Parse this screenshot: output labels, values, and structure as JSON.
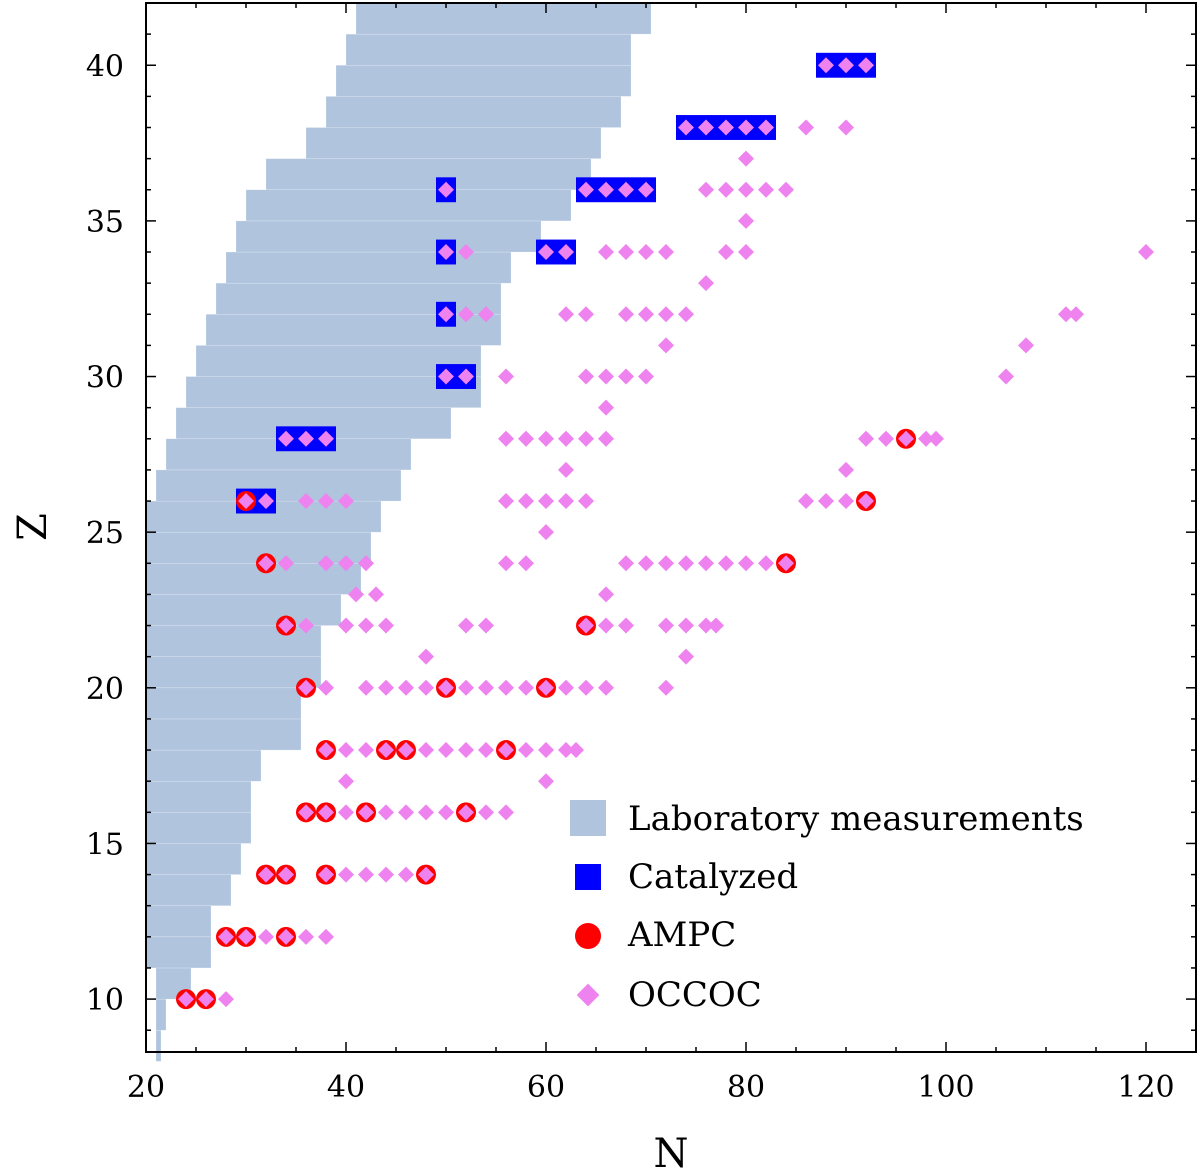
{
  "chart_data": {
    "type": "scatter",
    "title": "",
    "xlabel": "N",
    "ylabel": "Z",
    "xlim": [
      20,
      125
    ],
    "ylim": [
      8.3,
      42
    ],
    "xticks": [
      20,
      40,
      60,
      80,
      100,
      120
    ],
    "yticks": [
      10,
      15,
      20,
      25,
      30,
      35,
      40
    ],
    "grid": false,
    "legend_position": "lower-right",
    "colors": {
      "lab": "#b0c4de",
      "catalyzed": "#0000ff",
      "ampc": "#ff0000",
      "occoc": "#ee82ee"
    },
    "series": [
      {
        "name": "Laboratory measurements",
        "kind": "band",
        "z": [
          8.5,
          9.5,
          10.5,
          11.5,
          12.5,
          13.5,
          14.5,
          15.5,
          16.5,
          17.5,
          18.5,
          19.5,
          20.5,
          21.5,
          22.5,
          23.5,
          24.5,
          25.5,
          26.5,
          27.5,
          28.5,
          29.5,
          30.5,
          31.5,
          32.5,
          33.5,
          34.5,
          35.5,
          36.5,
          37.5,
          38.5,
          39.5,
          40.5,
          41.5
        ],
        "n_min": [
          21,
          21,
          21,
          20,
          20,
          20,
          20,
          20,
          20,
          20,
          20,
          20,
          20,
          20,
          20,
          20,
          20,
          20,
          21,
          22,
          23,
          24,
          25,
          26,
          27,
          28,
          29,
          30,
          32,
          36,
          38,
          39,
          40,
          41
        ],
        "n_max": [
          21.5,
          22,
          24.5,
          26.5,
          26.5,
          28.5,
          29.5,
          30.5,
          30.5,
          31.5,
          35.5,
          35.5,
          37.5,
          37.5,
          39.5,
          41.5,
          42.5,
          43.5,
          45.5,
          46.5,
          50.5,
          53.5,
          53.5,
          55.5,
          55.5,
          56.5,
          59.5,
          62.5,
          64.5,
          65.5,
          67.5,
          68.5,
          68.5,
          70.5
        ]
      },
      {
        "name": "Catalyzed",
        "kind": "square",
        "points": [
          [
            88,
            40
          ],
          [
            90,
            40
          ],
          [
            92,
            40
          ],
          [
            74,
            38
          ],
          [
            76,
            38
          ],
          [
            78,
            38
          ],
          [
            80,
            38
          ],
          [
            82,
            38
          ],
          [
            50,
            36
          ],
          [
            64,
            36
          ],
          [
            66,
            36
          ],
          [
            68,
            36
          ],
          [
            70,
            36
          ],
          [
            50,
            34
          ],
          [
            60,
            34
          ],
          [
            62,
            34
          ],
          [
            50,
            32
          ],
          [
            50,
            30
          ],
          [
            52,
            30
          ],
          [
            34,
            28
          ],
          [
            36,
            28
          ],
          [
            38,
            28
          ],
          [
            30,
            26
          ],
          [
            32,
            26
          ]
        ]
      },
      {
        "name": "AMPC",
        "kind": "circle",
        "points": [
          [
            96,
            28
          ],
          [
            30,
            26
          ],
          [
            92,
            26
          ],
          [
            32,
            24
          ],
          [
            84,
            24
          ],
          [
            34,
            22
          ],
          [
            64,
            22
          ],
          [
            36,
            20
          ],
          [
            50,
            20
          ],
          [
            60,
            20
          ],
          [
            38,
            18
          ],
          [
            44,
            18
          ],
          [
            46,
            18
          ],
          [
            56,
            18
          ],
          [
            36,
            16
          ],
          [
            38,
            16
          ],
          [
            42,
            16
          ],
          [
            52,
            16
          ],
          [
            32,
            14
          ],
          [
            34,
            14
          ],
          [
            38,
            14
          ],
          [
            48,
            14
          ],
          [
            28,
            12
          ],
          [
            30,
            12
          ],
          [
            34,
            12
          ],
          [
            24,
            10
          ],
          [
            26,
            10
          ]
        ]
      },
      {
        "name": "OCCOC",
        "kind": "diamond",
        "points": [
          [
            88,
            40
          ],
          [
            90,
            40
          ],
          [
            92,
            40
          ],
          [
            74,
            38
          ],
          [
            76,
            38
          ],
          [
            78,
            38
          ],
          [
            80,
            38
          ],
          [
            82,
            38
          ],
          [
            86,
            38
          ],
          [
            90,
            38
          ],
          [
            80,
            37
          ],
          [
            50,
            36
          ],
          [
            64,
            36
          ],
          [
            66,
            36
          ],
          [
            68,
            36
          ],
          [
            70,
            36
          ],
          [
            76,
            36
          ],
          [
            78,
            36
          ],
          [
            80,
            36
          ],
          [
            82,
            36
          ],
          [
            84,
            36
          ],
          [
            80,
            35
          ],
          [
            50,
            34
          ],
          [
            52,
            34
          ],
          [
            60,
            34
          ],
          [
            62,
            34
          ],
          [
            66,
            34
          ],
          [
            68,
            34
          ],
          [
            70,
            34
          ],
          [
            72,
            34
          ],
          [
            78,
            34
          ],
          [
            80,
            34
          ],
          [
            120,
            34
          ],
          [
            76,
            33
          ],
          [
            50,
            32
          ],
          [
            52,
            32
          ],
          [
            54,
            32
          ],
          [
            62,
            32
          ],
          [
            64,
            32
          ],
          [
            68,
            32
          ],
          [
            70,
            32
          ],
          [
            72,
            32
          ],
          [
            74,
            32
          ],
          [
            112,
            32
          ],
          [
            113,
            32
          ],
          [
            72,
            31
          ],
          [
            108,
            31
          ],
          [
            50,
            30
          ],
          [
            52,
            30
          ],
          [
            56,
            30
          ],
          [
            64,
            30
          ],
          [
            66,
            30
          ],
          [
            68,
            30
          ],
          [
            70,
            30
          ],
          [
            106,
            30
          ],
          [
            66,
            29
          ],
          [
            34,
            28
          ],
          [
            36,
            28
          ],
          [
            38,
            28
          ],
          [
            56,
            28
          ],
          [
            58,
            28
          ],
          [
            60,
            28
          ],
          [
            62,
            28
          ],
          [
            64,
            28
          ],
          [
            66,
            28
          ],
          [
            92,
            28
          ],
          [
            94,
            28
          ],
          [
            96,
            28
          ],
          [
            98,
            28
          ],
          [
            99,
            28
          ],
          [
            62,
            27
          ],
          [
            90,
            27
          ],
          [
            30,
            26
          ],
          [
            32,
            26
          ],
          [
            36,
            26
          ],
          [
            38,
            26
          ],
          [
            40,
            26
          ],
          [
            56,
            26
          ],
          [
            58,
            26
          ],
          [
            60,
            26
          ],
          [
            62,
            26
          ],
          [
            64,
            26
          ],
          [
            86,
            26
          ],
          [
            88,
            26
          ],
          [
            90,
            26
          ],
          [
            92,
            26
          ],
          [
            60,
            25
          ],
          [
            32,
            24
          ],
          [
            34,
            24
          ],
          [
            38,
            24
          ],
          [
            40,
            24
          ],
          [
            42,
            24
          ],
          [
            56,
            24
          ],
          [
            58,
            24
          ],
          [
            68,
            24
          ],
          [
            70,
            24
          ],
          [
            72,
            24
          ],
          [
            74,
            24
          ],
          [
            76,
            24
          ],
          [
            78,
            24
          ],
          [
            80,
            24
          ],
          [
            82,
            24
          ],
          [
            84,
            24
          ],
          [
            41,
            23
          ],
          [
            43,
            23
          ],
          [
            66,
            23
          ],
          [
            34,
            22
          ],
          [
            36,
            22
          ],
          [
            40,
            22
          ],
          [
            42,
            22
          ],
          [
            44,
            22
          ],
          [
            52,
            22
          ],
          [
            54,
            22
          ],
          [
            64,
            22
          ],
          [
            66,
            22
          ],
          [
            68,
            22
          ],
          [
            72,
            22
          ],
          [
            74,
            22
          ],
          [
            76,
            22
          ],
          [
            77,
            22
          ],
          [
            48,
            21
          ],
          [
            74,
            21
          ],
          [
            36,
            20
          ],
          [
            38,
            20
          ],
          [
            42,
            20
          ],
          [
            44,
            20
          ],
          [
            46,
            20
          ],
          [
            48,
            20
          ],
          [
            50,
            20
          ],
          [
            52,
            20
          ],
          [
            54,
            20
          ],
          [
            56,
            20
          ],
          [
            58,
            20
          ],
          [
            60,
            20
          ],
          [
            62,
            20
          ],
          [
            64,
            20
          ],
          [
            66,
            20
          ],
          [
            72,
            20
          ],
          [
            38,
            18
          ],
          [
            40,
            18
          ],
          [
            42,
            18
          ],
          [
            44,
            18
          ],
          [
            46,
            18
          ],
          [
            48,
            18
          ],
          [
            50,
            18
          ],
          [
            52,
            18
          ],
          [
            54,
            18
          ],
          [
            56,
            18
          ],
          [
            58,
            18
          ],
          [
            60,
            18
          ],
          [
            62,
            18
          ],
          [
            63,
            18
          ],
          [
            40,
            17
          ],
          [
            60,
            17
          ],
          [
            36,
            16
          ],
          [
            38,
            16
          ],
          [
            40,
            16
          ],
          [
            42,
            16
          ],
          [
            44,
            16
          ],
          [
            46,
            16
          ],
          [
            48,
            16
          ],
          [
            50,
            16
          ],
          [
            52,
            16
          ],
          [
            54,
            16
          ],
          [
            56,
            16
          ],
          [
            32,
            14
          ],
          [
            34,
            14
          ],
          [
            38,
            14
          ],
          [
            40,
            14
          ],
          [
            42,
            14
          ],
          [
            44,
            14
          ],
          [
            46,
            14
          ],
          [
            48,
            14
          ],
          [
            28,
            12
          ],
          [
            30,
            12
          ],
          [
            32,
            12
          ],
          [
            34,
            12
          ],
          [
            36,
            12
          ],
          [
            38,
            12
          ],
          [
            24,
            10
          ],
          [
            26,
            10
          ],
          [
            28,
            10
          ]
        ]
      }
    ]
  }
}
